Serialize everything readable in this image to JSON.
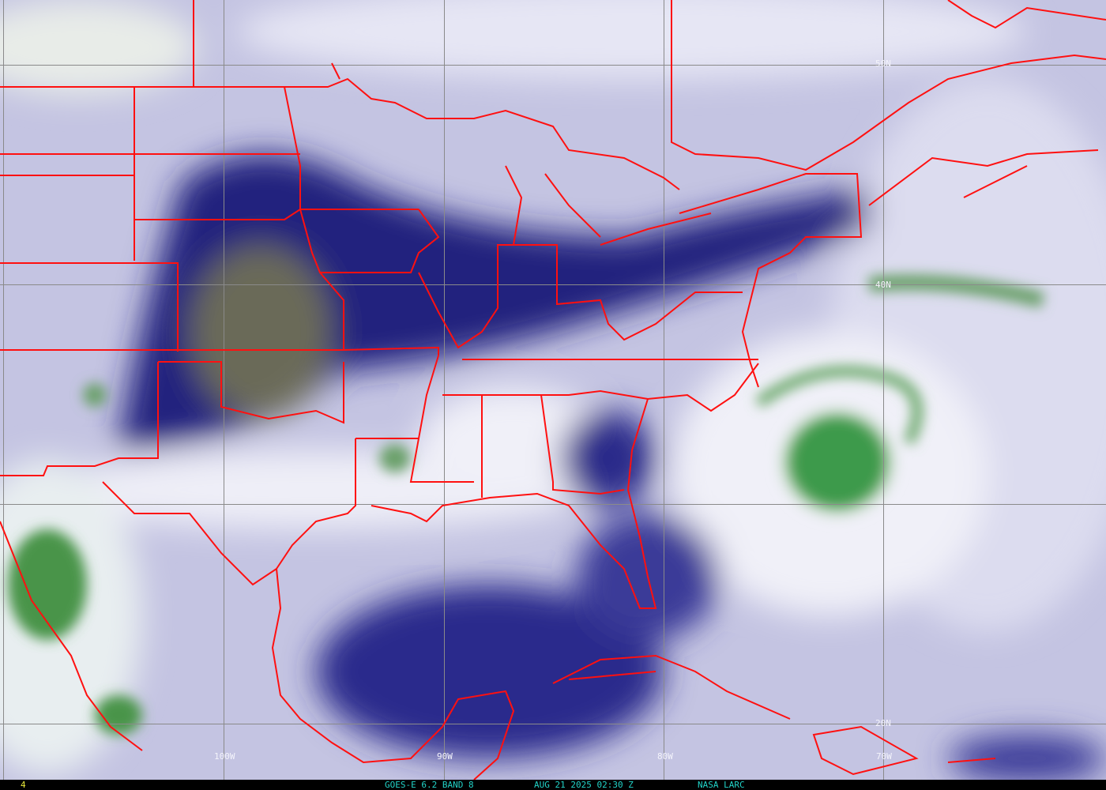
{
  "image": {
    "type": "satellite water vapor imagery",
    "colors": {
      "dry": "#1c1c7a",
      "mid": "#8e8ec8",
      "moist": "#eeeef8",
      "cloud_top": "#3f8f3f",
      "borders": "#ff1010",
      "grid": "#8a8a8a",
      "caption": "#22d3c8",
      "frame_number": "#e8e83a"
    }
  },
  "grid_labels": {
    "lat": [
      "50N",
      "40N",
      "20N"
    ],
    "lon": [
      "100W",
      "90W",
      "80W",
      "70W"
    ]
  },
  "footer": {
    "frame_number": "4",
    "product": "GOES-E 6.2 BAND 8",
    "datetime": "AUG 21 2025 02:30 Z",
    "credit": "NASA LARC"
  }
}
